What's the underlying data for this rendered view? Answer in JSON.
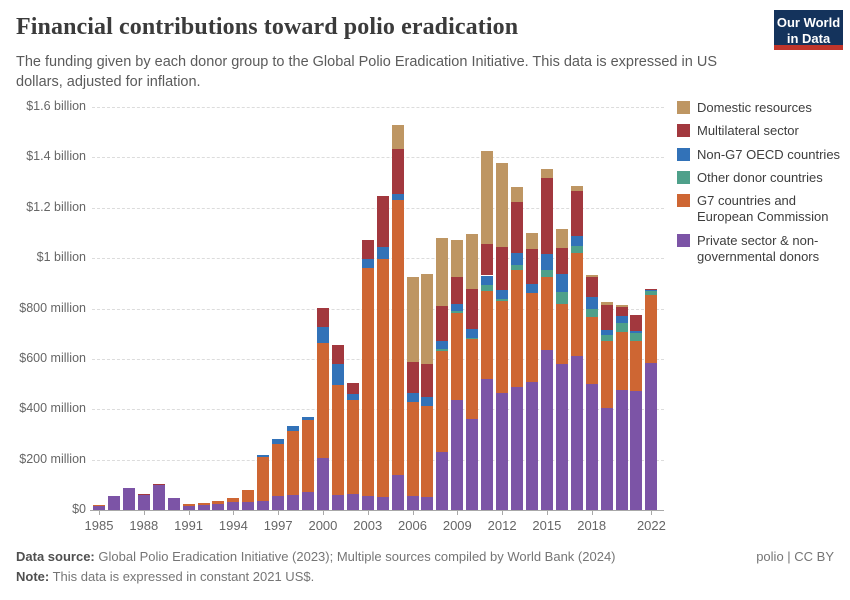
{
  "header": {
    "title": "Financial contributions toward polio eradication",
    "subtitle": "The funding given by each donor group to the Global Polio Eradication Initiative. This data is expressed in US dollars, adjusted for inflation.",
    "logo": {
      "line1": "Our World",
      "line2": "in Data",
      "bg_color": "#14335c",
      "accent_color": "#c0352b"
    }
  },
  "chart_data": {
    "type": "bar",
    "stacked": true,
    "title": "Financial contributions toward polio eradication",
    "unit": "US$ millions, constant 2021 US$",
    "ylim": [
      0,
      1600
    ],
    "grid": "dashed horizontal",
    "legend_position": "right",
    "y_ticks": [
      {
        "value": 0,
        "label": "$0"
      },
      {
        "value": 200,
        "label": "$200 million"
      },
      {
        "value": 400,
        "label": "$400 million"
      },
      {
        "value": 600,
        "label": "$600 million"
      },
      {
        "value": 800,
        "label": "$800 million"
      },
      {
        "value": 1000,
        "label": "$1 billion"
      },
      {
        "value": 1200,
        "label": "$1.2 billion"
      },
      {
        "value": 1400,
        "label": "$1.4 billion"
      },
      {
        "value": 1600,
        "label": "$1.6 billion"
      }
    ],
    "x_tick_years": [
      1985,
      1988,
      1991,
      1994,
      1997,
      2000,
      2003,
      2006,
      2009,
      2012,
      2015,
      2018,
      2022
    ],
    "stack_order": [
      "private",
      "g7",
      "other",
      "non_g7",
      "multilateral",
      "domestic"
    ],
    "colors": {
      "domestic": "#be9663",
      "multilateral": "#a2383e",
      "non_g7": "#3272b8",
      "other": "#4ea08a",
      "g7": "#ce6633",
      "private": "#7c54a6"
    },
    "legend": [
      {
        "id": "domestic",
        "label": "Domestic resources"
      },
      {
        "id": "multilateral",
        "label": "Multilateral sector"
      },
      {
        "id": "non_g7",
        "label": "Non-G7 OECD countries"
      },
      {
        "id": "other",
        "label": "Other donor countries"
      },
      {
        "id": "g7",
        "label": "G7 countries and European Commission"
      },
      {
        "id": "private",
        "label": "Private sector & non-governmental donors"
      }
    ],
    "bars": [
      {
        "year": 1985,
        "private": 17,
        "g7": 3,
        "other": 0,
        "non_g7": 0,
        "multilateral": 0,
        "domestic": 0
      },
      {
        "year": 1986,
        "private": 57,
        "g7": 0,
        "other": 0,
        "non_g7": 0,
        "multilateral": 0,
        "domestic": 0
      },
      {
        "year": 1987,
        "private": 87,
        "g7": 0,
        "other": 0,
        "non_g7": 0,
        "multilateral": 0,
        "domestic": 0
      },
      {
        "year": 1988,
        "private": 60,
        "g7": 0,
        "other": 0,
        "non_g7": 0,
        "multilateral": 3,
        "domestic": 0
      },
      {
        "year": 1989,
        "private": 99,
        "g7": 0,
        "other": 0,
        "non_g7": 0,
        "multilateral": 5,
        "domestic": 0
      },
      {
        "year": 1990,
        "private": 48,
        "g7": 0,
        "other": 0,
        "non_g7": 0,
        "multilateral": 0,
        "domestic": 0
      },
      {
        "year": 1991,
        "private": 17,
        "g7": 7,
        "other": 0,
        "non_g7": 0,
        "multilateral": 0,
        "domestic": 0
      },
      {
        "year": 1992,
        "private": 21,
        "g7": 8,
        "other": 0,
        "non_g7": 0,
        "multilateral": 0,
        "domestic": 0
      },
      {
        "year": 1993,
        "private": 25,
        "g7": 11,
        "other": 0,
        "non_g7": 0,
        "multilateral": 0,
        "domestic": 0
      },
      {
        "year": 1994,
        "private": 33,
        "g7": 13,
        "other": 0,
        "non_g7": 0,
        "multilateral": 0,
        "domestic": 0
      },
      {
        "year": 1995,
        "private": 33,
        "g7": 46,
        "other": 0,
        "non_g7": 0,
        "multilateral": 0,
        "domestic": 0
      },
      {
        "year": 1996,
        "private": 34,
        "g7": 175,
        "other": 0,
        "non_g7": 10,
        "multilateral": 0,
        "domestic": 0
      },
      {
        "year": 1997,
        "private": 55,
        "g7": 208,
        "other": 0,
        "non_g7": 18,
        "multilateral": 0,
        "domestic": 0
      },
      {
        "year": 1998,
        "private": 60,
        "g7": 255,
        "other": 0,
        "non_g7": 18,
        "multilateral": 0,
        "domestic": 0
      },
      {
        "year": 1999,
        "private": 70,
        "g7": 287,
        "other": 0,
        "non_g7": 14,
        "multilateral": 0,
        "domestic": 0
      },
      {
        "year": 2000,
        "private": 208,
        "g7": 456,
        "other": 0,
        "non_g7": 63,
        "multilateral": 76,
        "domestic": 0
      },
      {
        "year": 2001,
        "private": 58,
        "g7": 437,
        "other": 0,
        "non_g7": 83,
        "multilateral": 77,
        "domestic": 0
      },
      {
        "year": 2002,
        "private": 62,
        "g7": 374,
        "other": 0,
        "non_g7": 24,
        "multilateral": 43,
        "domestic": 0
      },
      {
        "year": 2003,
        "private": 55,
        "g7": 907,
        "other": 0,
        "non_g7": 35,
        "multilateral": 75,
        "domestic": 0
      },
      {
        "year": 2004,
        "private": 50,
        "g7": 945,
        "other": 0,
        "non_g7": 50,
        "multilateral": 200,
        "domestic": 0
      },
      {
        "year": 2005,
        "private": 140,
        "g7": 1091,
        "other": 0,
        "non_g7": 22,
        "multilateral": 182,
        "domestic": 92
      },
      {
        "year": 2006,
        "private": 57,
        "g7": 370,
        "other": 0,
        "non_g7": 36,
        "multilateral": 124,
        "domestic": 339
      },
      {
        "year": 2007,
        "private": 52,
        "g7": 360,
        "other": 0,
        "non_g7": 36,
        "multilateral": 130,
        "domestic": 359
      },
      {
        "year": 2008,
        "private": 230,
        "g7": 400,
        "other": 9,
        "non_g7": 31,
        "multilateral": 140,
        "domestic": 268
      },
      {
        "year": 2009,
        "private": 437,
        "g7": 347,
        "other": 5,
        "non_g7": 28,
        "multilateral": 107,
        "domestic": 149
      },
      {
        "year": 2010,
        "private": 360,
        "g7": 317,
        "other": 5,
        "non_g7": 36,
        "multilateral": 160,
        "domestic": 216
      },
      {
        "year": 2011,
        "private": 520,
        "g7": 351,
        "other": 23,
        "non_g7": 37,
        "multilateral": 124,
        "domestic": 371
      },
      {
        "year": 2012,
        "private": 465,
        "g7": 365,
        "other": 8,
        "non_g7": 36,
        "multilateral": 171,
        "domestic": 332
      },
      {
        "year": 2013,
        "private": 490,
        "g7": 464,
        "other": 17,
        "non_g7": 49,
        "multilateral": 204,
        "domestic": 57
      },
      {
        "year": 2014,
        "private": 508,
        "g7": 355,
        "other": 0,
        "non_g7": 35,
        "multilateral": 140,
        "domestic": 60
      },
      {
        "year": 2015,
        "private": 637,
        "g7": 287,
        "other": 29,
        "non_g7": 64,
        "multilateral": 303,
        "domestic": 33
      },
      {
        "year": 2016,
        "private": 580,
        "g7": 237,
        "other": 47,
        "non_g7": 73,
        "multilateral": 104,
        "domestic": 76
      },
      {
        "year": 2017,
        "private": 611,
        "g7": 409,
        "other": 27,
        "non_g7": 40,
        "multilateral": 180,
        "domestic": 20
      },
      {
        "year": 2018,
        "private": 500,
        "g7": 265,
        "other": 34,
        "non_g7": 45,
        "multilateral": 80,
        "domestic": 8
      },
      {
        "year": 2019,
        "private": 404,
        "g7": 266,
        "other": 25,
        "non_g7": 20,
        "multilateral": 100,
        "domestic": 10
      },
      {
        "year": 2020,
        "private": 477,
        "g7": 231,
        "other": 36,
        "non_g7": 27,
        "multilateral": 33,
        "domestic": 11
      },
      {
        "year": 2021,
        "private": 471,
        "g7": 200,
        "other": 30,
        "non_g7": 8,
        "multilateral": 65,
        "domestic": 0
      },
      {
        "year": 2022,
        "private": 584,
        "g7": 269,
        "other": 15,
        "non_g7": 5,
        "multilateral": 5,
        "domestic": 0
      }
    ]
  },
  "footer": {
    "source_label": "Data source:",
    "source_text": "Global Polio Eradication Initiative (2023); Multiple sources compiled by World Bank (2024)",
    "attribution": "polio | CC BY",
    "note_label": "Note:",
    "note_text": "This data is expressed in constant 2021 US$."
  }
}
